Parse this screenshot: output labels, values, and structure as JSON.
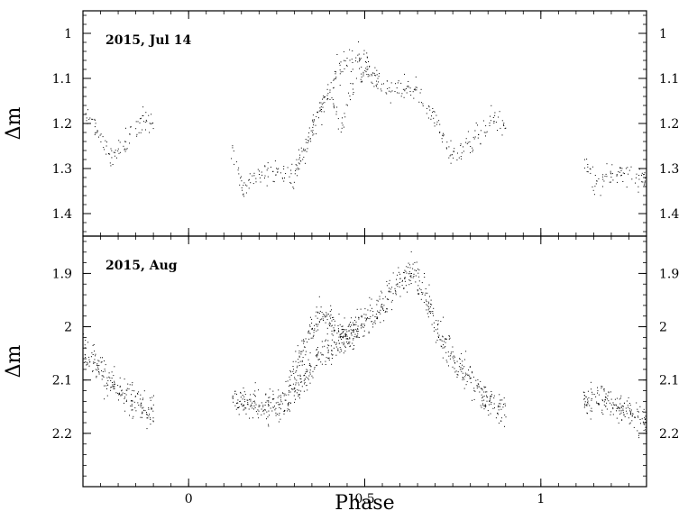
{
  "chart_data": [
    {
      "type": "scatter",
      "annotation": "2015, Jul 14",
      "xlabel": "",
      "ylabel": "Δm",
      "xlim": [
        -0.3,
        1.3
      ],
      "ylim": [
        1.45,
        0.95
      ],
      "y_inverted": true,
      "y_ticks": [
        1,
        1.1,
        1.2,
        1.3,
        1.4
      ],
      "y_tick_labels": [
        "1",
        "1.1",
        "1.2",
        "1.3",
        "1.4"
      ],
      "x_ticks": [
        0,
        0.5,
        1
      ],
      "marker_color": "#000000",
      "series": [
        {
          "segments": [
            {
              "x": [
                -0.3,
                -0.26,
                -0.22,
                -0.19,
                -0.16,
                -0.13,
                -0.1
              ],
              "y": [
                1.17,
                1.22,
                1.28,
                1.25,
                1.22,
                1.19,
                1.2
              ]
            },
            {
              "x": [
                0.12,
                0.15,
                0.2,
                0.25,
                0.3,
                0.34,
                0.38,
                0.42,
                0.46,
                0.5,
                0.53,
                0.58,
                0.62,
                0.66,
                0.7,
                0.74,
                0.78,
                0.82,
                0.86,
                0.9
              ],
              "y": [
                1.25,
                1.34,
                1.31,
                1.31,
                1.32,
                1.24,
                1.16,
                1.09,
                1.05,
                1.05,
                1.11,
                1.12,
                1.12,
                1.14,
                1.19,
                1.26,
                1.26,
                1.22,
                1.19,
                1.2
              ]
            },
            {
              "x": [
                0.3,
                0.33,
                0.36,
                0.4,
                0.43,
                0.46,
                0.5,
                0.54
              ],
              "y": [
                1.3,
                1.25,
                1.18,
                1.13,
                1.21,
                1.12,
                1.08,
                1.1
              ]
            },
            {
              "x": [
                1.12,
                1.15,
                1.2,
                1.25,
                1.3
              ],
              "y": [
                1.25,
                1.34,
                1.31,
                1.31,
                1.33
              ]
            }
          ],
          "density": 18,
          "scatter": 0.025
        }
      ]
    },
    {
      "type": "scatter",
      "annotation": "2015, Aug",
      "xlabel": "Phase",
      "ylabel": "Δm",
      "xlim": [
        -0.3,
        1.3
      ],
      "ylim": [
        2.3,
        1.83
      ],
      "y_inverted": true,
      "y_ticks": [
        1.9,
        2,
        2.1,
        2.2
      ],
      "y_tick_labels": [
        "1.9",
        "2",
        "2.1",
        "2.2"
      ],
      "x_ticks": [
        0,
        0.5,
        1
      ],
      "x_tick_labels": [
        "0",
        "0.5",
        "1"
      ],
      "marker_color": "#000000",
      "series": [
        {
          "segments": [
            {
              "x": [
                -0.3,
                -0.25,
                -0.2,
                -0.15,
                -0.1
              ],
              "y": [
                2.04,
                2.08,
                2.12,
                2.14,
                2.16
              ]
            },
            {
              "x": [
                0.12,
                0.16,
                0.2,
                0.24,
                0.28,
                0.32,
                0.36,
                0.4,
                0.44,
                0.48,
                0.52,
                0.56,
                0.6,
                0.64,
                0.68,
                0.72,
                0.76,
                0.8,
                0.84,
                0.88,
                0.9
              ],
              "y": [
                2.14,
                2.14,
                2.15,
                2.15,
                2.14,
                2.1,
                2.06,
                2.04,
                2.02,
                2.0,
                1.98,
                1.95,
                1.91,
                1.89,
                1.96,
                2.03,
                2.07,
                2.1,
                2.13,
                2.15,
                2.17
              ]
            },
            {
              "x": [
                0.28,
                0.32,
                0.36,
                0.4,
                0.44,
                0.48
              ],
              "y": [
                2.12,
                2.05,
                1.98,
                1.98,
                2.02,
                2.0
              ]
            },
            {
              "x": [
                1.12,
                1.16,
                1.2,
                1.25,
                1.3
              ],
              "y": [
                2.14,
                2.13,
                2.14,
                2.16,
                2.18
              ]
            }
          ],
          "density": 40,
          "scatter": 0.03
        }
      ]
    }
  ]
}
